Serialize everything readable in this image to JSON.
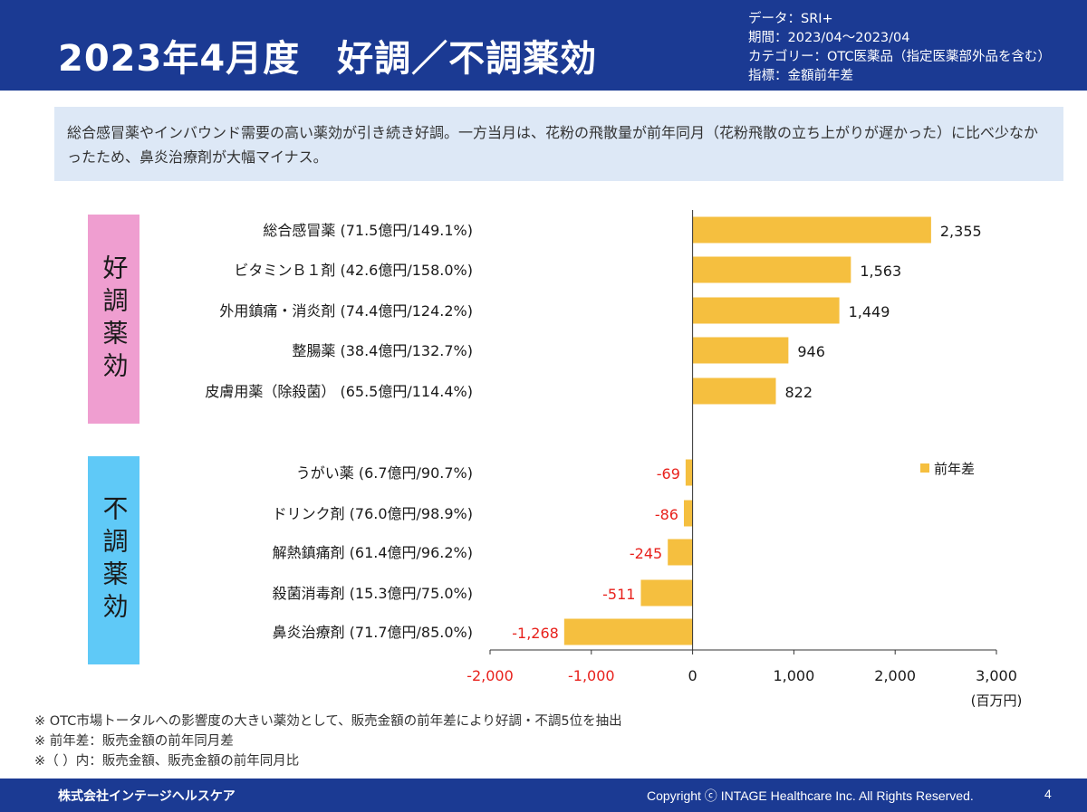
{
  "header": {
    "title": "2023年4月度　好調／不調薬効",
    "meta": [
      "データ：SRI+",
      "期間：2023/04～2023/04",
      "カテゴリー：OTC医薬品（指定医薬部外品を含む）",
      "指標：金額前年差"
    ]
  },
  "summary": "総合感冒薬やインバウンド需要の高い薬効が引き続き好調。一方当月は、花粉の飛散量が前年同月（花粉飛散の立ち上がりが遅かった）に比べ少なかったため、鼻炎治療剤が大幅マイナス。",
  "groups": {
    "good": "好調薬効",
    "bad": "不調薬効"
  },
  "chart_data": {
    "type": "bar",
    "orientation": "horizontal",
    "categories": [
      "総合感冒薬 (71.5億円/149.1%)",
      "ビタミンＢ１剤 (42.6億円/158.0%)",
      "外用鎮痛・消炎剤 (74.4億円/124.2%)",
      "整腸薬 (38.4億円/132.7%)",
      "皮膚用薬（除殺菌） (65.5億円/114.4%)",
      "うがい薬 (6.7億円/90.7%)",
      "ドリンク剤 (76.0億円/98.9%)",
      "解熱鎮痛剤 (61.4億円/96.2%)",
      "殺菌消毒剤 (15.3億円/75.0%)",
      "鼻炎治療剤 (71.7億円/85.0%)"
    ],
    "series": [
      {
        "name": "前年差",
        "values": [
          2355,
          1563,
          1449,
          946,
          822,
          -69,
          -86,
          -245,
          -511,
          -1268
        ],
        "labels": [
          "2,355",
          "1,563",
          "1,449",
          "946",
          "822",
          "-69",
          "-86",
          "-245",
          "-511",
          "-1,268"
        ]
      }
    ],
    "xlim": [
      -2000,
      3000
    ],
    "xticks": [
      -2000,
      -1000,
      0,
      1000,
      2000,
      3000
    ],
    "xtick_labels": [
      "-2,000",
      "-1,000",
      "0",
      "1,000",
      "2,000",
      "3,000"
    ],
    "xunit": "(百万円)",
    "legend_position": "right",
    "colors": {
      "bar": "#f5bf3f",
      "negative_label": "#e8211c"
    }
  },
  "notes": [
    "※ OTC市場トータルへの影響度の大きい薬効として、販売金額の前年差により好調・不調5位を抽出",
    "※ 前年差：販売金額の前年同月差",
    "※（ ）内：販売金額、販売金額の前年同月比"
  ],
  "footer": {
    "company": "株式会社インテージヘルスケア",
    "copyright": "Copyright ⓒ INTAGE Healthcare Inc. All Rights Reserved.",
    "page": "4"
  }
}
